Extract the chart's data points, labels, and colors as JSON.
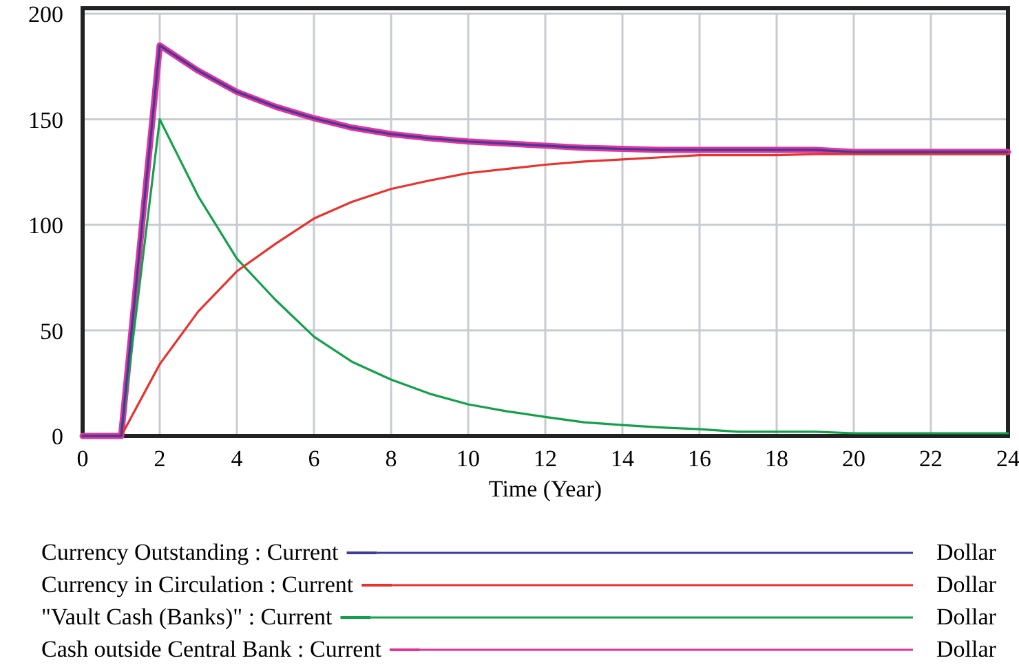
{
  "chart_data": {
    "type": "line",
    "xlabel": "Time (Year)",
    "x": [
      0,
      1,
      2,
      3,
      4,
      5,
      6,
      7,
      8,
      9,
      10,
      11,
      12,
      13,
      14,
      15,
      16,
      17,
      18,
      19,
      20,
      21,
      22,
      23,
      24
    ],
    "xlim": [
      0,
      24
    ],
    "xticks": [
      0,
      2,
      4,
      6,
      8,
      10,
      12,
      14,
      16,
      18,
      20,
      22,
      24
    ],
    "ylim": [
      0,
      200
    ],
    "yticks": [
      0,
      50,
      100,
      150,
      200
    ],
    "grid": true,
    "legend": "bottom",
    "series": [
      {
        "name": "Currency Outstanding : Current",
        "color": "#3c3c9c",
        "values": [
          0,
          0,
          185,
          173,
          163,
          156,
          150.5,
          146,
          143,
          141,
          139.5,
          138.5,
          137.5,
          136.5,
          136,
          135.5,
          135.5,
          135.5,
          135.5,
          135.5,
          134.5,
          134.5,
          134.5,
          134.5,
          134.5
        ]
      },
      {
        "name": "Currency in Circulation : Current",
        "color": "#e8322e",
        "values": [
          0,
          0,
          34,
          59,
          78,
          91,
          103,
          111,
          117,
          121,
          124.5,
          126.5,
          128.5,
          130,
          131,
          132,
          133,
          133,
          133,
          133.5,
          133.5,
          133.5,
          133.5,
          133.5,
          133.5
        ]
      },
      {
        "name": "\"Vault Cash (Banks)\" : Current",
        "color": "#13a04a",
        "values": [
          0,
          0,
          150,
          113.5,
          84,
          64.5,
          47,
          35,
          26.7,
          20,
          15,
          11.7,
          9,
          6.5,
          5.2,
          4,
          3.2,
          2,
          2,
          2,
          1.3,
          1.3,
          1.3,
          1.3,
          1.3
        ]
      },
      {
        "name": "Cash outside Central Bank : Current",
        "color": "#e5339a",
        "values": [
          0,
          0,
          185,
          173,
          163,
          156,
          150.5,
          146,
          143,
          141,
          139.5,
          138.5,
          137.5,
          136.5,
          136,
          135.5,
          135.5,
          135.5,
          135.5,
          135.5,
          134.5,
          134.5,
          134.5,
          134.5,
          134.5
        ]
      }
    ],
    "annotations": [
      "Dollar",
      "Dollar",
      "Dollar",
      "Dollar"
    ]
  }
}
